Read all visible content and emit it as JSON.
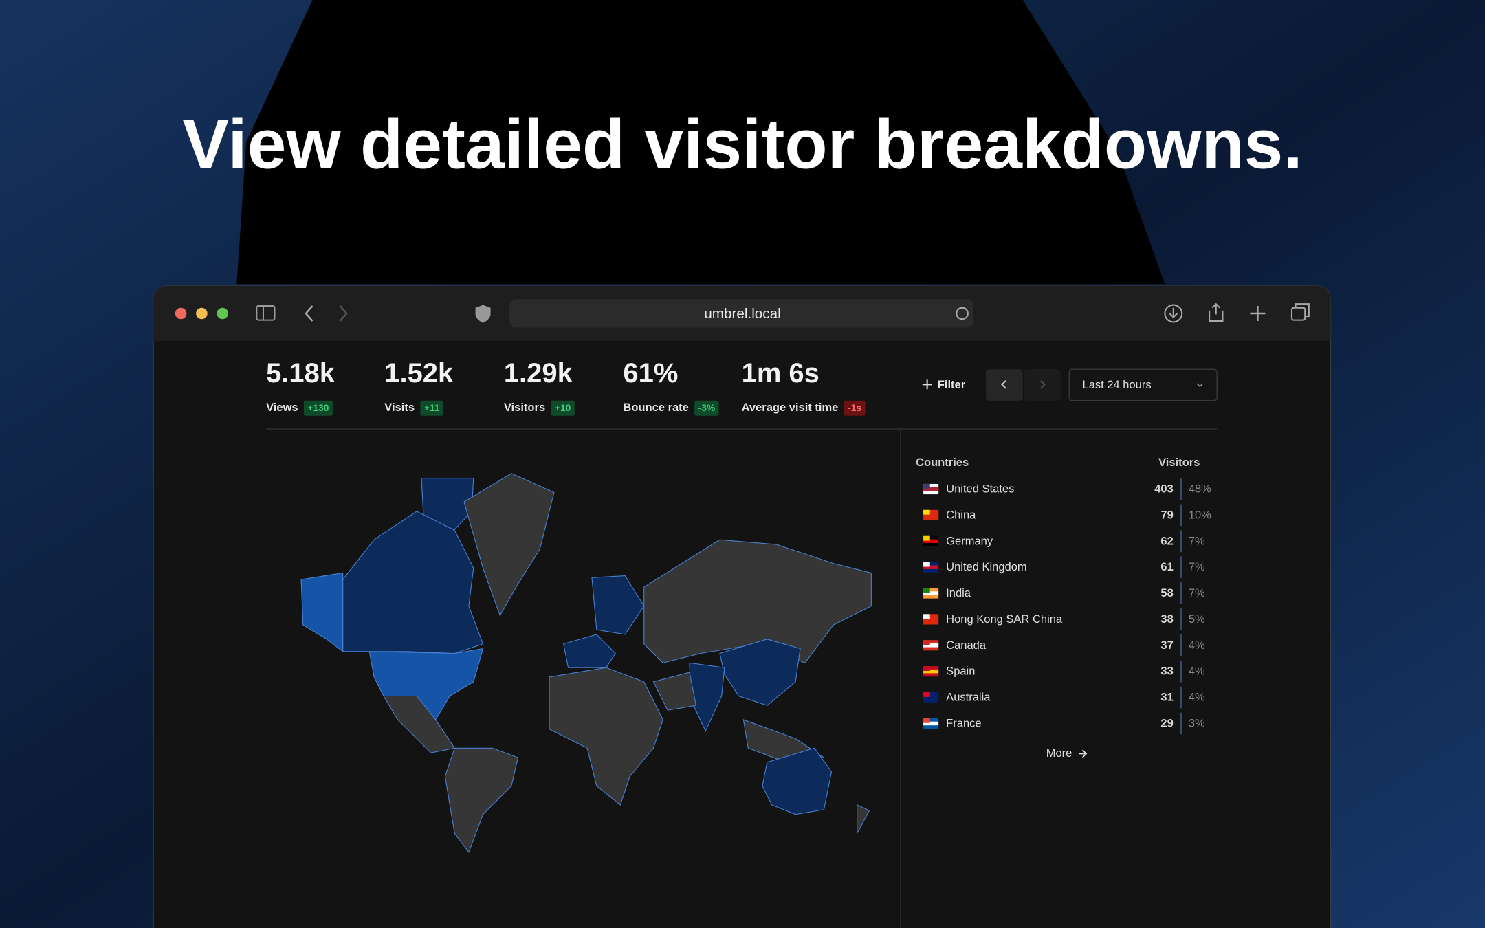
{
  "header": {
    "title": "View detailed visitor breakdowns."
  },
  "browser": {
    "url": "umbrel.local"
  },
  "stats": [
    {
      "value": "5.18k",
      "label": "Views",
      "delta": "+130",
      "trend": "up"
    },
    {
      "value": "1.52k",
      "label": "Visits",
      "delta": "+11",
      "trend": "up"
    },
    {
      "value": "1.29k",
      "label": "Visitors",
      "delta": "+10",
      "trend": "up"
    },
    {
      "value": "61%",
      "label": "Bounce rate",
      "delta": "-3%",
      "trend": "up"
    },
    {
      "value": "1m 6s",
      "label": "Average visit time",
      "delta": "-1s",
      "trend": "down"
    }
  ],
  "controls": {
    "filter": "Filter",
    "range": "Last 24 hours"
  },
  "table": {
    "headers": [
      "Countries",
      "Visitors"
    ],
    "rows": [
      [
        "United States",
        403,
        "48%"
      ],
      [
        "China",
        79,
        "10%"
      ],
      [
        "Germany",
        62,
        "7%"
      ],
      [
        "United Kingdom",
        61,
        "7%"
      ],
      [
        "India",
        58,
        "7%"
      ],
      [
        "Hong Kong SAR China",
        38,
        "5%"
      ],
      [
        "Canada",
        37,
        "4%"
      ],
      [
        "Spain",
        33,
        "4%"
      ],
      [
        "Australia",
        31,
        "4%"
      ],
      [
        "France",
        29,
        "3%"
      ]
    ],
    "more": "More"
  }
}
